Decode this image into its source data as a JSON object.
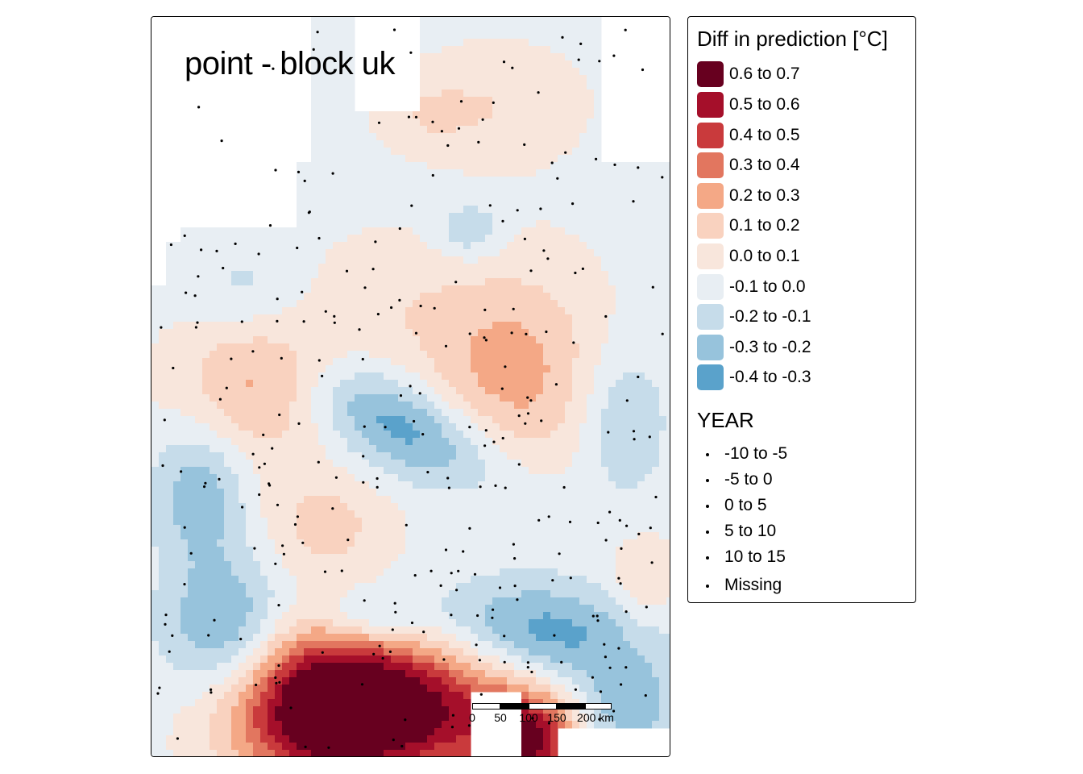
{
  "map": {
    "title": "point - block uk",
    "grid_cell_label": "",
    "colors": {
      "c_0_6_0_7": "#67001f",
      "c_0_5_0_6": "#a50f2a",
      "c_0_4_0_5": "#c93a3c",
      "c_0_3_0_4": "#e2765f",
      "c_0_2_0_3": "#f4a886",
      "c_0_1_0_2": "#f9d2bf",
      "c_0_0_0_1": "#f8e6dc",
      "c_m0_1_0_0": "#e8eef3",
      "c_m0_2_m0_1": "#c6dcea",
      "c_m0_3_m0_2": "#97c3dc",
      "c_m0_4_m0_3": "#5aa2cb"
    }
  },
  "legend": {
    "title": "Diff in prediction [°C]",
    "items": [
      {
        "label": "0.6 to 0.7",
        "color": "#67001f"
      },
      {
        "label": "0.5 to 0.6",
        "color": "#a50f2a"
      },
      {
        "label": "0.4 to 0.5",
        "color": "#c93a3c"
      },
      {
        "label": "0.3 to 0.4",
        "color": "#e2765f"
      },
      {
        "label": "0.2 to 0.3",
        "color": "#f4a886"
      },
      {
        "label": "0.1 to 0.2",
        "color": "#f9d2bf"
      },
      {
        "label": "0.0 to 0.1",
        "color": "#f8e6dc"
      },
      {
        "label": "-0.1 to 0.0",
        "color": "#e8eef3"
      },
      {
        "label": "-0.2 to -0.1",
        "color": "#c6dcea"
      },
      {
        "label": "-0.3 to -0.2",
        "color": "#97c3dc"
      },
      {
        "label": "-0.4 to -0.3",
        "color": "#5aa2cb"
      }
    ],
    "year_title": "YEAR",
    "year_items": [
      {
        "label": "-10 to -5"
      },
      {
        "label": "-5 to 0"
      },
      {
        "label": "0 to 5"
      },
      {
        "label": "5 to 10"
      },
      {
        "label": "10 to 15"
      },
      {
        "label": "Missing"
      }
    ]
  },
  "scalebar": {
    "labels": [
      "0",
      "50",
      "100",
      "150",
      "200 km"
    ]
  }
}
